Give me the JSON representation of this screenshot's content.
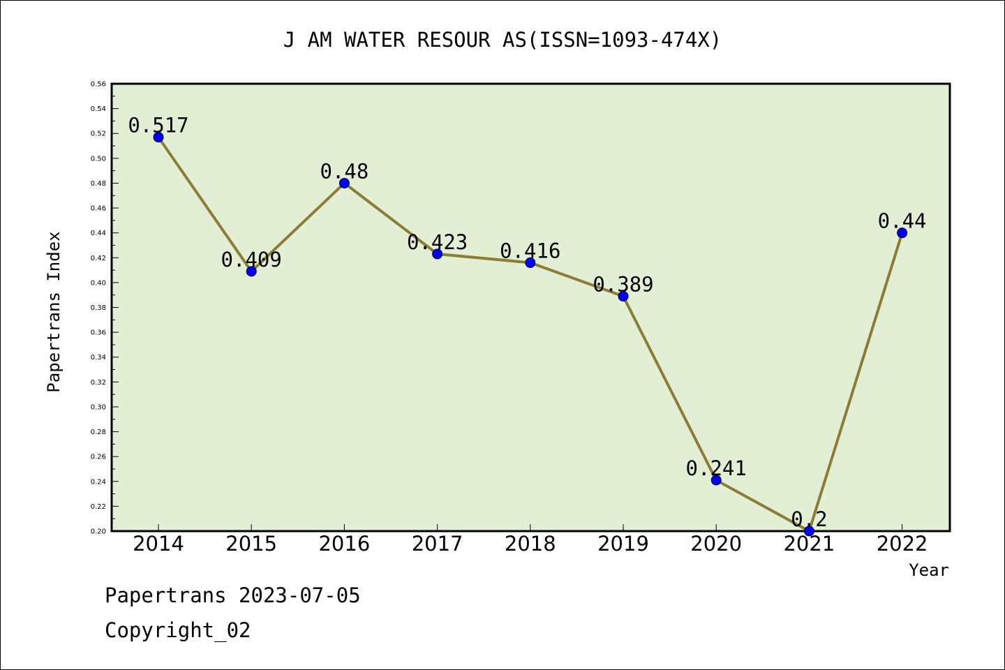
{
  "chart_data": {
    "type": "line",
    "title": "J AM WATER RESOUR AS(ISSN=1093-474X)",
    "xlabel": "Year",
    "ylabel": "Papertrans Index",
    "categories": [
      "2014",
      "2015",
      "2016",
      "2017",
      "2018",
      "2019",
      "2020",
      "2021",
      "2022"
    ],
    "values": [
      0.517,
      0.409,
      0.48,
      0.423,
      0.416,
      0.389,
      0.241,
      0.2,
      0.44
    ],
    "data_labels": [
      "0.517",
      "0.409",
      "0.48",
      "0.423",
      "0.416",
      "0.389",
      "0.241",
      "0.2",
      "0.44"
    ],
    "ylim": [
      0.2,
      0.56
    ],
    "yticks": [
      "0.20",
      "0.22",
      "0.24",
      "0.26",
      "0.28",
      "0.30",
      "0.32",
      "0.34",
      "0.36",
      "0.38",
      "0.40",
      "0.42",
      "0.44",
      "0.46",
      "0.48",
      "0.50",
      "0.52",
      "0.54",
      "0.56"
    ],
    "grid": false,
    "legend": "none",
    "colors": {
      "plot_background": "#e2efd5",
      "line": "#8b7d35",
      "marker": "#0000ee",
      "axis": "#000000"
    }
  },
  "footer": {
    "line1": "Papertrans 2023-07-05",
    "line2": "Copyright_02"
  }
}
